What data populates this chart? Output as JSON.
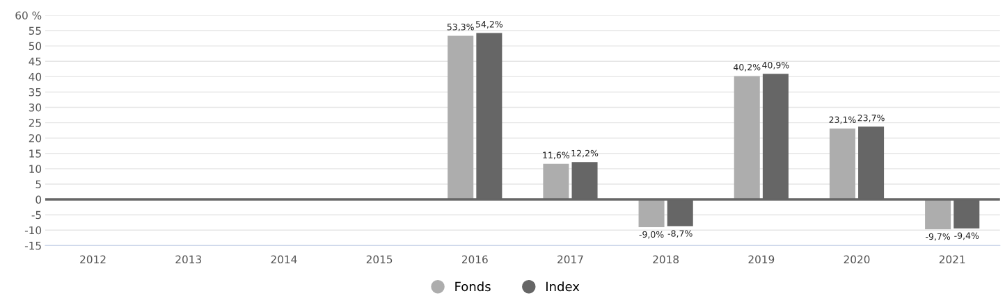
{
  "chart_data": {
    "type": "bar",
    "categories": [
      "2012",
      "2013",
      "2014",
      "2015",
      "2016",
      "2017",
      "2018",
      "2019",
      "2020",
      "2021"
    ],
    "series": [
      {
        "name": "Fonds",
        "color": "#adadad",
        "values": [
          null,
          null,
          null,
          null,
          53.3,
          11.6,
          -9.0,
          40.2,
          23.1,
          -9.7
        ],
        "value_labels": [
          null,
          null,
          null,
          null,
          "53,3%",
          "11,6%",
          "-9,0%",
          "40,2%",
          "23,1%",
          "-9,7%"
        ]
      },
      {
        "name": "Index",
        "color": "#666666",
        "values": [
          null,
          null,
          null,
          null,
          54.2,
          12.2,
          -8.7,
          40.9,
          23.7,
          -9.4
        ],
        "value_labels": [
          null,
          null,
          null,
          null,
          "54,2%",
          "12,2%",
          "-8,7%",
          "40,9%",
          "23,7%",
          "-9,4%"
        ]
      }
    ],
    "ylim": [
      -15,
      60
    ],
    "yticks": [
      -15,
      -10,
      -5,
      0,
      5,
      10,
      15,
      20,
      25,
      30,
      35,
      40,
      45,
      50,
      55,
      {
        "value": 60,
        "label": "60 %"
      }
    ],
    "ref_lines": [
      {
        "axis": "y",
        "value": 0,
        "color": "#666666"
      }
    ],
    "grid": "y",
    "legend": "bottom",
    "marker": "circle"
  }
}
